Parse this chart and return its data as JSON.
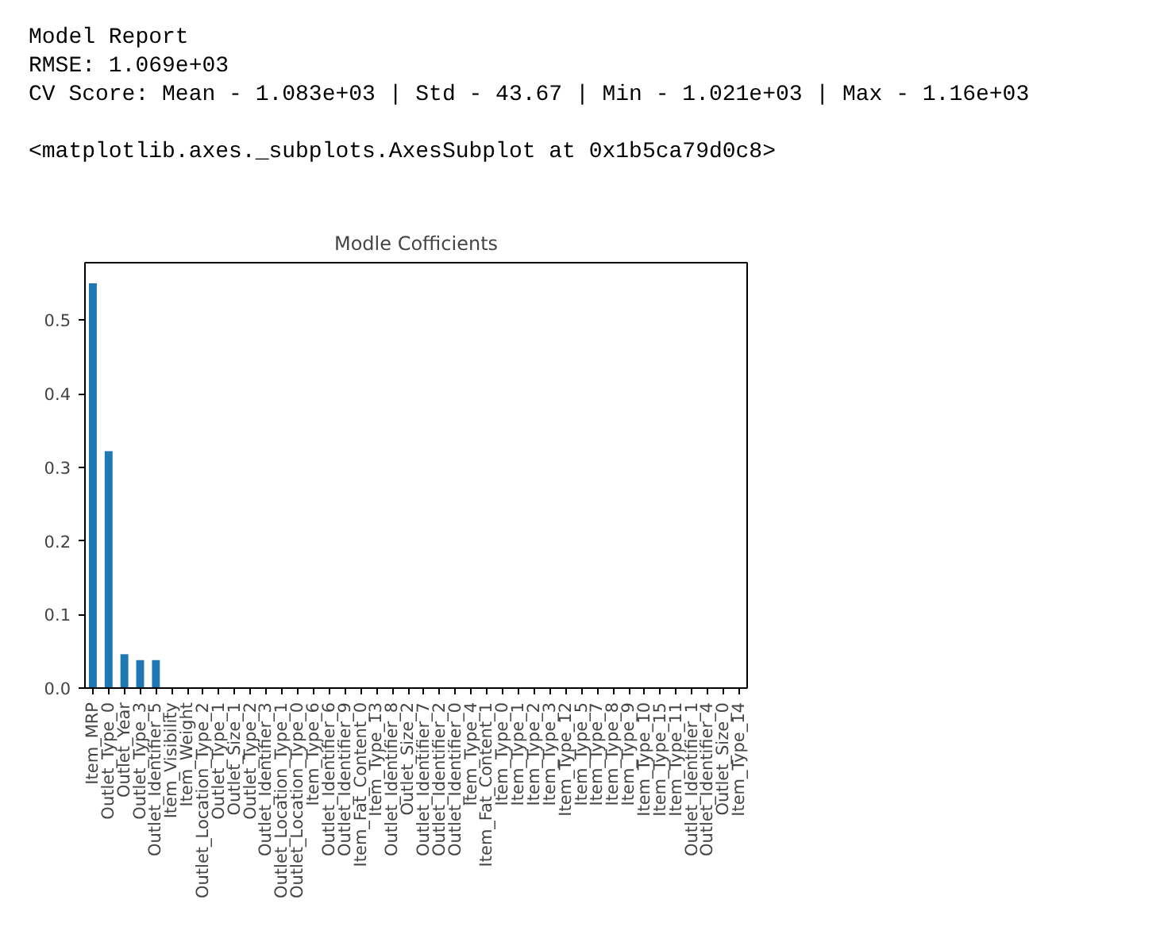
{
  "chart_data": {
    "type": "bar",
    "title": "Modle Cofficients",
    "annotations": [
      "Model Report",
      "RMSE: 1.069e+03",
      "CV Score: Mean - 1.083e+03 | Std - 43.67 | Min - 1.021e+03 | Max - 1.16e+03",
      "<matplotlib.axes._subplots.AxesSubplot at 0x1b5ca79d0c8>"
    ],
    "categories": [
      "Item_MRP",
      "Outlet_Type_0",
      "Outlet_Year",
      "Outlet_Type_3",
      "Outlet_Identifier_5",
      "Item_Visibility",
      "Item_Weight",
      "Outlet_Location_Type_2",
      "Outlet_Type_1",
      "Outlet_Size_1",
      "Outlet_Type_2",
      "Outlet_Identifier_3",
      "Outlet_Location_Type_1",
      "Outlet_Location_Type_0",
      "Item_Type_6",
      "Outlet_Identifier_6",
      "Outlet_Identifier_9",
      "Item_Fat_Content_0",
      "Item_Type_13",
      "Outlet_Identifier_8",
      "Outlet_Size_2",
      "Outlet_Identifier_7",
      "Outlet_Identifier_2",
      "Outlet_Identifier_0",
      "Item_Type_4",
      "Item_Fat_Content_1",
      "Item_Type_0",
      "Item_Type_1",
      "Item_Type_2",
      "Item_Type_3",
      "Item_Type_12",
      "Item_Type_5",
      "Item_Type_7",
      "Item_Type_8",
      "Item_Type_9",
      "Item_Type_10",
      "Item_Type_15",
      "Item_Type_11",
      "Outlet_Identifier_1",
      "Outlet_Identifier_4",
      "Outlet_Size_0",
      "Item_Type_14"
    ],
    "values": [
      0.55,
      0.322,
      0.046,
      0.038,
      0.038,
      0,
      0,
      0,
      0,
      0,
      0,
      0,
      0,
      0,
      0,
      0,
      0,
      0,
      0,
      0,
      0,
      0,
      0,
      0,
      0,
      0,
      0,
      0,
      0,
      0,
      0,
      0,
      0,
      0,
      0,
      0,
      0,
      0,
      0,
      0,
      0,
      0
    ],
    "color": "#1f77b4",
    "ylim": [
      0,
      0.578
    ],
    "yticks": [
      {
        "value": 0,
        "label": "0.0"
      },
      0.1,
      0.2,
      0.3,
      0.4,
      0.5
    ],
    "grid": false
  }
}
